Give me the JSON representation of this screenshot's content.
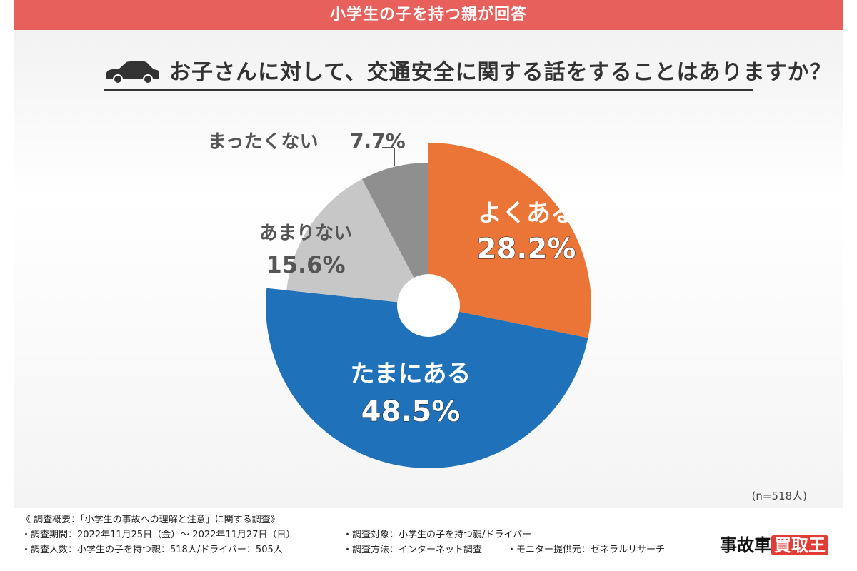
{
  "banner": "小学生の子を持つ親が回答",
  "question": "お子さんに対して、交通安全に関する話をすることはありますか？",
  "icons": {
    "car": "car-icon"
  },
  "chart_data": {
    "type": "pie",
    "slices": [
      {
        "label": "よくある",
        "value": 28.2,
        "display": "28.2%",
        "color": "#ea7536"
      },
      {
        "label": "たまにある",
        "value": 48.5,
        "display": "48.5%",
        "color": "#1f72ba"
      },
      {
        "label": "あまりない",
        "value": 15.6,
        "display": "15.6%",
        "color": "#c7c7c7"
      },
      {
        "label": "まったくない",
        "value": 7.7,
        "display": "7.7%",
        "color": "#8f8f8f"
      }
    ]
  },
  "n_note": "(n=518人)",
  "footer": {
    "title": "《 調査概要：「小学生の事故への理解と注意」に関する調査》",
    "period": "・調査期間：2022年11月25日（金）～ 2022年11月27日（日）",
    "target": "・調査対象：小学生の子を持つ親/ドライバー",
    "people": "・調査人数：小学生の子を持つ親：518人/ドライバー：505人",
    "method": "・調査方法：インターネット調査",
    "provider": "・モニター提供元：ゼネラルリサーチ"
  },
  "logo": {
    "text1": "事故車",
    "text2": "買取王"
  }
}
